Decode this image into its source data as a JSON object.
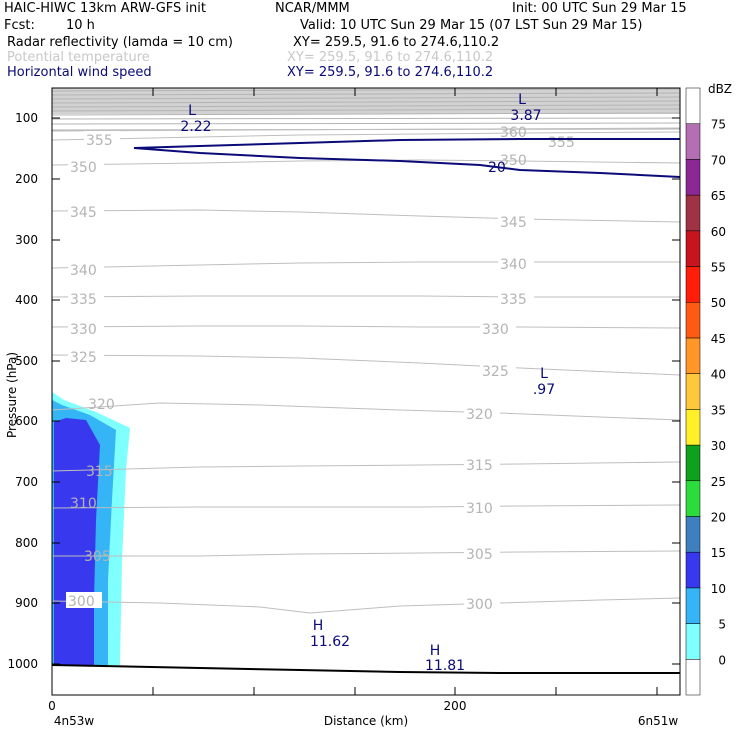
{
  "header": {
    "model": "HAIC-HIWC 13km ARW-GFS init",
    "org": "NCAR/MMM",
    "init": "Init: 00 UTC Sun 29 Mar 15",
    "fcst_label": "Fcst:",
    "fcst_value": "10 h",
    "valid": "Valid: 10 UTC Sun 29 Mar 15 (07 LST Sun 29 Mar 15)",
    "fields": [
      {
        "name": "Radar reflectivity (lamda = 10 cm)",
        "xy": "XY= 259.5, 91.6 to 274.6,110.2",
        "color": "#000000"
      },
      {
        "name": "Potential temperature",
        "xy": "XY= 259.5, 91.6 to 274.6,110.2",
        "color": "#c8c8c8"
      },
      {
        "name": "Horizontal wind speed",
        "xy": "XY= 259.5, 91.6 to 274.6,110.2",
        "color": "#0a0a78"
      }
    ]
  },
  "chart_data": {
    "type": "contour",
    "ylabel": "Pressure (hPa)",
    "xlabel": "Distance (km)",
    "y_ticks": [
      100,
      200,
      300,
      400,
      500,
      600,
      700,
      800,
      900,
      1000
    ],
    "x_ticks": [
      0,
      200
    ],
    "x_end_labels": {
      "left": "4n53w",
      "right": "6n51w"
    },
    "theta_labels": [
      "300",
      "305",
      "310",
      "315",
      "320",
      "325",
      "330",
      "335",
      "340",
      "345",
      "350",
      "355",
      "360"
    ],
    "wind_labels": [
      "20"
    ],
    "extrema": [
      {
        "kind": "L",
        "value": "2.22",
        "color": "#0a0a78"
      },
      {
        "kind": "L",
        "value": "3.87",
        "color": "#0a0a78"
      },
      {
        "kind": "L",
        "value": ".97",
        "color": "#0a0a78"
      },
      {
        "kind": "H",
        "value": "11.62",
        "color": "#0a0a78"
      },
      {
        "kind": "H",
        "value": "11.81",
        "color": "#0a0a78"
      }
    ],
    "colorbar": {
      "unit": "dBZ",
      "levels": [
        "0",
        "5",
        "10",
        "15",
        "20",
        "25",
        "30",
        "35",
        "40",
        "45",
        "50",
        "55",
        "60",
        "65",
        "70",
        "75"
      ],
      "colors": [
        "#ffffff",
        "#80ffff",
        "#35b5f5",
        "#3838ee",
        "#3e7fbf",
        "#2cdc3c",
        "#0fa01e",
        "#fff02a",
        "#ffc83c",
        "#ff9628",
        "#ff5a14",
        "#ff1e0a",
        "#c8141e",
        "#a03246",
        "#8c2896",
        "#b46eb4",
        "#ffffff"
      ]
    }
  }
}
